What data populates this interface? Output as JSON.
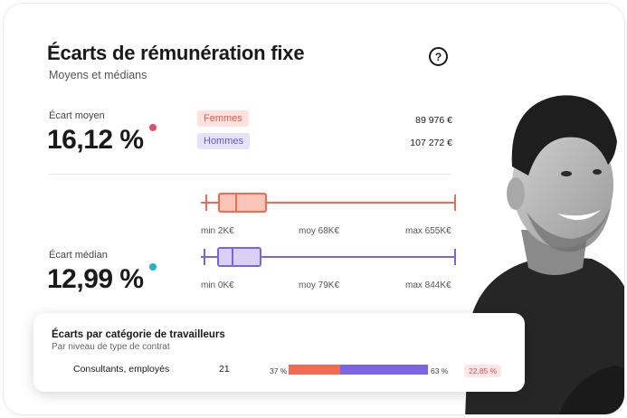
{
  "header": {
    "title": "Écarts de rémunération fixe",
    "subtitle": "Moyens et médians",
    "help_symbol": "?"
  },
  "mean": {
    "label": "Écart moyen",
    "value": "16,12 %",
    "dot_color": "#ea4a64"
  },
  "median": {
    "label": "Écart médian",
    "value": "12,99 %",
    "dot_color": "#24b3c4"
  },
  "legend": {
    "women_label": "Femmes",
    "men_label": "Hommes",
    "women_amount": "89 976 €",
    "men_amount": "107 272 €"
  },
  "boxplots": [
    {
      "series": "Femmes",
      "color": "#f26b50",
      "fill": "#fbc5b9",
      "min": 2,
      "q1": 3,
      "median": 11,
      "q3": 19,
      "max": 655,
      "labels": {
        "min": "min 2K€",
        "mean": "moy 68K€",
        "max": "max 655K€"
      }
    },
    {
      "series": "Hommes",
      "color": "#7b63e3",
      "fill": "#d8d1f5",
      "min": 0,
      "q1": 2,
      "median": 7,
      "q3": 12,
      "max": 844,
      "labels": {
        "min": "min 0K€",
        "mean": "moy 79K€",
        "max": "max 844K€"
      }
    }
  ],
  "categories_panel": {
    "title": "Écarts par catégorie de travailleurs",
    "subtitle": "Par niveau de type de contrat",
    "rows": [
      {
        "label": "Consultants, employés",
        "count": "21",
        "women_pct_label": "37 %",
        "men_pct_label": "63 %",
        "women_pct": 37,
        "men_pct": 63,
        "gap": "22,85 %"
      }
    ]
  },
  "colors": {
    "women": "#f26b50",
    "men": "#7b63e3",
    "text": "#1a1a1a"
  },
  "icons": {
    "help": "question-circle-icon"
  }
}
